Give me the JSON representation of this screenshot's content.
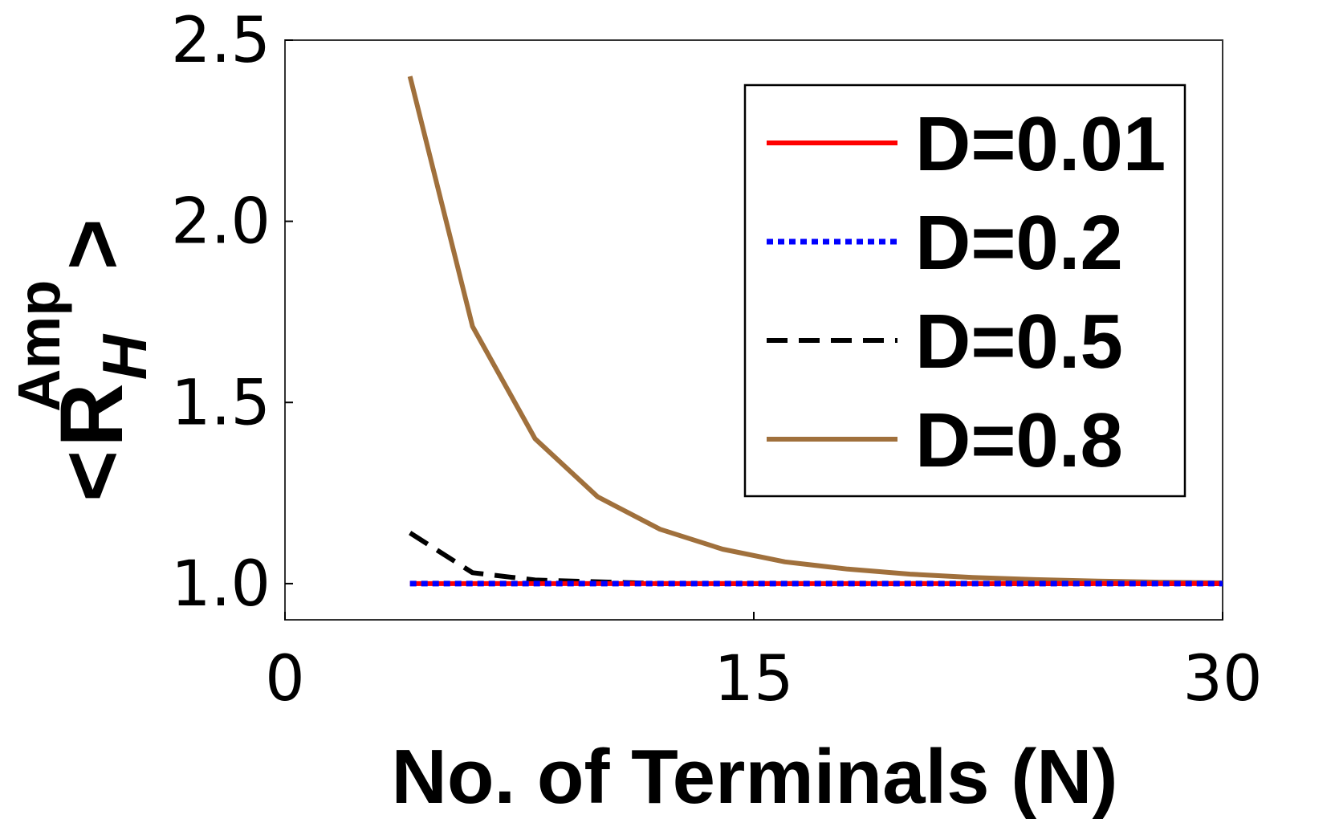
{
  "chart_data": {
    "type": "line",
    "xlabel": "No. of Terminals (N)",
    "ylabel": {
      "open": "<",
      "main": "R",
      "subscript": "H",
      "superscript": "Amp",
      "close": ">"
    },
    "xlim": [
      0,
      30
    ],
    "ylim": [
      0.9,
      2.5
    ],
    "xticks": [
      "0",
      "15",
      "30"
    ],
    "yticks": [
      "1.0",
      "1.5",
      "2.0",
      "2.5"
    ],
    "xtick_values": [
      0,
      15,
      30
    ],
    "ytick_values": [
      1.0,
      1.5,
      2.0,
      2.5
    ],
    "grid": false,
    "legend_position": "top-right",
    "x": [
      4,
      6,
      8,
      10,
      12,
      14,
      16,
      18,
      20,
      22,
      24,
      26,
      28,
      30
    ],
    "series": [
      {
        "name": "D=0.01",
        "color": "#ff0000",
        "style": "solid",
        "values": [
          1.0,
          1.0,
          1.0,
          1.0,
          1.0,
          1.0,
          1.0,
          1.0,
          1.0,
          1.0,
          1.0,
          1.0,
          1.0,
          1.0
        ]
      },
      {
        "name": "D=0.2",
        "color": "#0000ff",
        "style": "dotted",
        "values": [
          1.0,
          1.0,
          1.0,
          1.0,
          1.0,
          1.0,
          1.0,
          1.0,
          1.0,
          1.0,
          1.0,
          1.0,
          1.0,
          1.0
        ]
      },
      {
        "name": "D=0.5",
        "color": "#000000",
        "style": "dashed",
        "values": [
          1.14,
          1.03,
          1.01,
          1.005,
          1.0,
          1.0,
          1.0,
          1.0,
          1.0,
          1.0,
          1.0,
          1.0,
          1.0,
          1.0
        ]
      },
      {
        "name": "D=0.8",
        "color": "#a0703c",
        "style": "solid",
        "values": [
          2.4,
          1.71,
          1.4,
          1.24,
          1.15,
          1.095,
          1.06,
          1.04,
          1.026,
          1.017,
          1.011,
          1.007,
          1.004,
          1.002
        ]
      }
    ]
  }
}
